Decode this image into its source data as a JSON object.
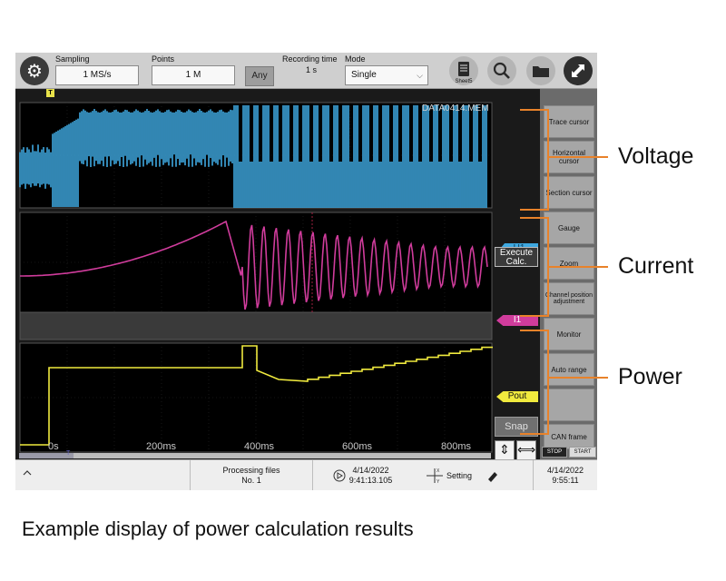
{
  "toolbar": {
    "sampling_label": "Sampling",
    "sampling_value": "1 MS/s",
    "points_label": "Points",
    "points_value": "1 M",
    "any_label": "Any",
    "recording_time_label": "Recording time",
    "recording_time_value": "1 s",
    "mode_label": "Mode",
    "mode_value": "Single",
    "sheet_label": "Sheet5",
    "icons": [
      "gear-icon",
      "sheet-icon",
      "search-icon",
      "folder-icon",
      "fullscreen-icon"
    ]
  },
  "waveform": {
    "file_name": "DATA0414.MEM",
    "trigger_marker": "T",
    "channels": {
      "voltage_tag": "U1",
      "current_tag": "I1",
      "power_tag": "Pout"
    },
    "colors": {
      "voltage": "#3ea8e0",
      "current": "#d03c9c",
      "power": "#f0ea3e"
    },
    "time_labels": [
      "0s",
      "200ms",
      "400ms",
      "600ms",
      "800ms"
    ],
    "execute_calc_line1": "Execute",
    "execute_calc_line2": "Calc.",
    "snap_label": "Snap",
    "scroll_marker": "T"
  },
  "right_panel": {
    "buttons": [
      "Trace cursor",
      "Horizontal cursor",
      "Section cursor",
      "Gauge",
      "Zoom",
      "Channel position adjustment",
      "Monitor",
      "Auto range",
      "",
      "CAN frame"
    ],
    "stop_label": "STOP",
    "start_label": "START"
  },
  "status_bar": {
    "processing_label": "Processing files",
    "processing_value": "No. 1",
    "trigger_date": "4/14/2022",
    "trigger_time": "9:41:13.105",
    "setting_label": "Setting",
    "clock_date": "4/14/2022",
    "clock_time": "9:55:11"
  },
  "callouts": {
    "voltage": "Voltage",
    "current": "Current",
    "power": "Power"
  },
  "caption": "Example display of power calculation results"
}
